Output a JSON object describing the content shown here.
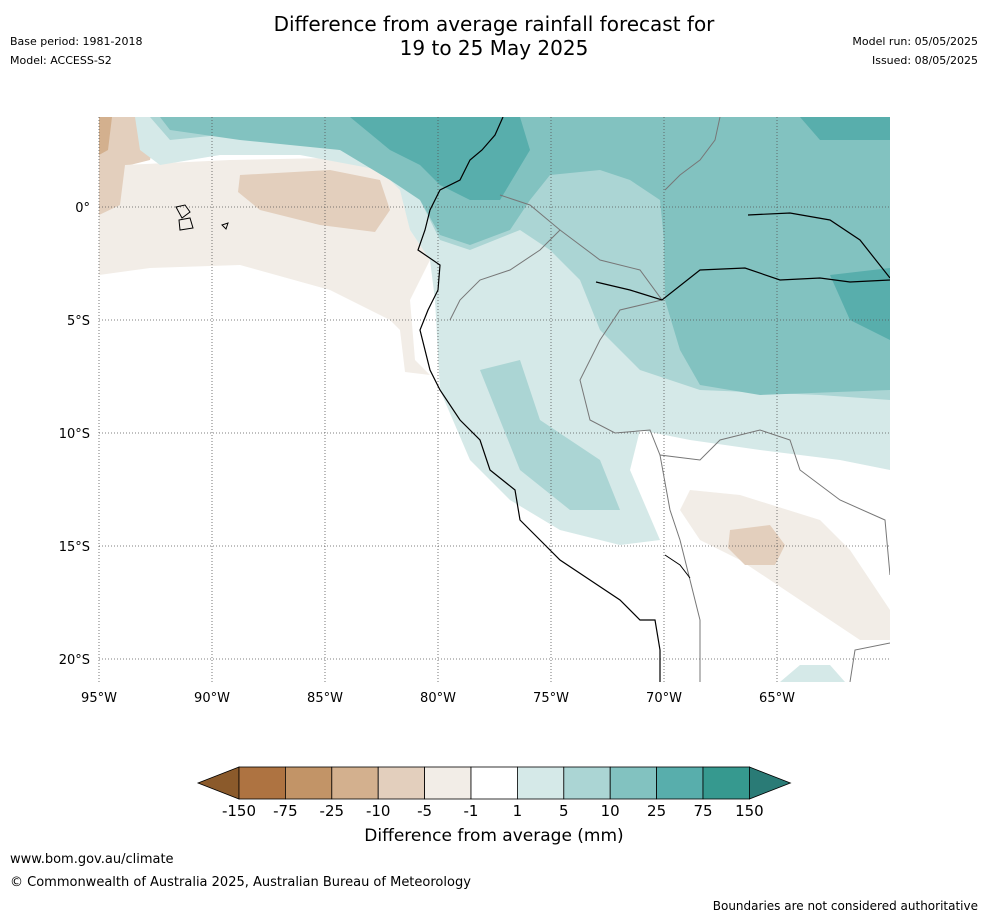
{
  "title": {
    "line1": "Difference from average rainfall forecast for",
    "line2": "19 to 25 May 2025"
  },
  "meta_left": {
    "base_period": "Base period: 1981-2018",
    "model": "Model: ACCESS-S2"
  },
  "meta_right": {
    "model_run": "Model run: 05/05/2025",
    "issued": "Issued: 08/05/2025"
  },
  "map": {
    "region": "Western South America and eastern Pacific",
    "gridlines": true,
    "lon_labels": [
      "95°W",
      "90°W",
      "85°W",
      "80°W",
      "75°W",
      "70°W",
      "65°W"
    ],
    "lat_labels": [
      "0°",
      "5°S",
      "10°S",
      "15°S",
      "20°S"
    ],
    "lon_values": [
      -95,
      -90,
      -85,
      -80,
      -75,
      -70,
      -65
    ],
    "lat_values": [
      0,
      -5,
      -10,
      -15,
      -20
    ]
  },
  "colorbar": {
    "label": "Difference from average (mm)",
    "tick_labels": [
      "-150",
      "-75",
      "-25",
      "-10",
      "-5",
      "-1",
      "1",
      "5",
      "10",
      "25",
      "75",
      "150"
    ],
    "colors": [
      "#8b5a2b",
      "#ae7341",
      "#c29467",
      "#d3b08e",
      "#e3cfbd",
      "#f2ede7",
      "#ffffff",
      "#d5e9e8",
      "#abd5d4",
      "#82c2c0",
      "#58aeac",
      "#36998f",
      "#2a7b76"
    ]
  },
  "footer": {
    "url": "www.bom.gov.au/climate",
    "copyright": "© Commonwealth of Australia 2025, Australian Bureau of Meteorology",
    "note": "Boundaries are not considered authoritative"
  }
}
